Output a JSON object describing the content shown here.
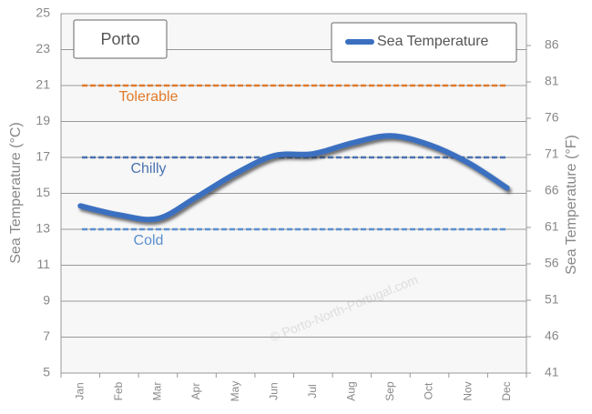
{
  "chart_data": {
    "type": "line",
    "title": "Porto",
    "categories": [
      "Jan",
      "Feb",
      "Mar",
      "Apr",
      "May",
      "Jun",
      "Jul",
      "Aug",
      "Sep",
      "Oct",
      "Nov",
      "Dec"
    ],
    "series": [
      {
        "name": "Sea Temperature",
        "color": "#3a6fc0",
        "values": [
          14.3,
          13.8,
          13.6,
          14.8,
          16.1,
          17.1,
          17.2,
          17.8,
          18.2,
          17.7,
          16.7,
          15.3
        ]
      }
    ],
    "ylim": [
      5,
      25
    ],
    "yticks": [
      5,
      7,
      9,
      11,
      13,
      15,
      17,
      19,
      21,
      23,
      25
    ],
    "y2lim": [
      41,
      90.375
    ],
    "y2ticks": [
      41,
      46,
      51,
      56,
      61,
      66,
      71,
      76,
      81,
      86
    ],
    "y_label": "Sea Temperature (°C)",
    "y2_label": "Sea Temperature (°F)",
    "reference_lines": [
      {
        "label": "Tolerable",
        "value": 21,
        "color": "#e07a2a"
      },
      {
        "label": "Chilly",
        "value": 17,
        "color": "#4a72b0"
      },
      {
        "label": "Cold",
        "value": 13,
        "color": "#5b8fd0"
      }
    ],
    "watermark": "© Porto-North-Portugal.com",
    "grid": true,
    "legend": "upper right"
  }
}
